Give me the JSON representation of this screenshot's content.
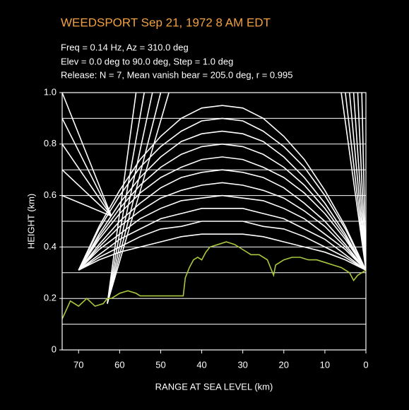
{
  "chart_data": {
    "type": "line",
    "title": "WEEDSPORT   Sep 21, 1972   8 AM EDT",
    "info": [
      "Freq = 0.14 Hz,  Az = 310.0 deg",
      "Elev = 0.0 deg to  90.0 deg, Step = 1.0 deg",
      "Release:  N = 7,  Mean vanish bear = 205.0 deg, r = 0.995"
    ],
    "xlabel": "RANGE AT SEA LEVEL (km)",
    "ylabel": "HEIGHT (km)",
    "xlim": [
      74,
      0
    ],
    "ylim": [
      0,
      1
    ],
    "xticks": [
      70,
      60,
      50,
      40,
      30,
      20,
      10,
      0
    ],
    "yticks": [
      0,
      0.2,
      0.4,
      0.6,
      0.8,
      {
        "value": 1,
        "label": "1.0"
      }
    ],
    "ygrid": [
      0.1,
      0.2,
      0.3,
      0.4,
      0.5,
      0.6,
      0.7,
      0.8,
      0.9
    ],
    "ray_color": "#ffffff",
    "rays": [
      {
        "x": [
          0,
          5,
          10,
          15,
          20,
          25,
          30,
          35,
          40,
          45,
          50,
          55,
          60,
          65,
          70
        ],
        "values": [
          0.31,
          0.35,
          0.38,
          0.4,
          0.42,
          0.44,
          0.45,
          0.45,
          0.45,
          0.44,
          0.42,
          0.4,
          0.38,
          0.35,
          0.31
        ]
      },
      {
        "x": [
          0,
          5,
          10,
          15,
          20,
          25,
          30,
          35,
          40,
          45,
          50,
          55,
          60,
          65,
          70
        ],
        "values": [
          0.31,
          0.36,
          0.4,
          0.44,
          0.47,
          0.48,
          0.5,
          0.5,
          0.5,
          0.48,
          0.47,
          0.44,
          0.4,
          0.36,
          0.31
        ]
      },
      {
        "x": [
          0,
          5,
          10,
          15,
          20,
          25,
          30,
          35,
          40,
          45,
          50,
          55,
          60,
          65,
          70
        ],
        "values": [
          0.31,
          0.37,
          0.43,
          0.47,
          0.51,
          0.53,
          0.55,
          0.55,
          0.55,
          0.53,
          0.51,
          0.47,
          0.43,
          0.37,
          0.31
        ]
      },
      {
        "x": [
          0,
          5,
          10,
          15,
          20,
          25,
          30,
          35,
          40,
          45,
          50,
          55,
          60,
          65,
          70
        ],
        "values": [
          0.31,
          0.39,
          0.45,
          0.51,
          0.55,
          0.58,
          0.59,
          0.6,
          0.59,
          0.58,
          0.55,
          0.51,
          0.45,
          0.39,
          0.31
        ]
      },
      {
        "x": [
          0,
          5,
          10,
          15,
          20,
          25,
          30,
          35,
          40,
          45,
          50,
          55,
          60,
          65,
          70
        ],
        "values": [
          0.31,
          0.4,
          0.48,
          0.54,
          0.59,
          0.62,
          0.64,
          0.65,
          0.64,
          0.62,
          0.59,
          0.54,
          0.48,
          0.4,
          0.31
        ]
      },
      {
        "x": [
          0,
          5,
          10,
          15,
          20,
          25,
          30,
          35,
          40,
          45,
          50,
          55,
          60,
          65,
          70
        ],
        "values": [
          0.31,
          0.41,
          0.5,
          0.57,
          0.63,
          0.67,
          0.69,
          0.7,
          0.69,
          0.67,
          0.63,
          0.57,
          0.5,
          0.41,
          0.31
        ]
      },
      {
        "x": [
          0,
          5,
          10,
          15,
          20,
          25,
          30,
          35,
          40,
          45,
          50,
          55,
          60,
          65,
          70
        ],
        "values": [
          0.31,
          0.43,
          0.53,
          0.61,
          0.67,
          0.71,
          0.74,
          0.75,
          0.74,
          0.71,
          0.67,
          0.61,
          0.53,
          0.43,
          0.31
        ]
      },
      {
        "x": [
          0,
          5,
          10,
          15,
          20,
          25,
          30,
          35,
          40,
          45,
          50,
          55,
          60,
          65,
          70
        ],
        "values": [
          0.31,
          0.44,
          0.55,
          0.64,
          0.71,
          0.76,
          0.79,
          0.8,
          0.79,
          0.76,
          0.71,
          0.64,
          0.55,
          0.44,
          0.31
        ]
      },
      {
        "x": [
          0,
          5,
          10,
          15,
          20,
          25,
          30,
          35,
          40,
          45,
          50,
          55,
          60,
          65,
          70
        ],
        "values": [
          0.31,
          0.45,
          0.57,
          0.67,
          0.75,
          0.81,
          0.84,
          0.85,
          0.84,
          0.81,
          0.75,
          0.67,
          0.57,
          0.45,
          0.31
        ]
      },
      {
        "x": [
          0,
          5,
          10,
          15,
          20,
          25,
          30,
          35,
          40,
          45,
          50,
          55,
          60,
          65,
          70
        ],
        "values": [
          0.31,
          0.47,
          0.6,
          0.71,
          0.79,
          0.85,
          0.89,
          0.9,
          0.89,
          0.85,
          0.79,
          0.71,
          0.6,
          0.47,
          0.31
        ]
      },
      {
        "x": [
          0,
          5,
          10,
          15,
          20,
          25,
          30,
          35,
          40,
          45,
          50,
          55,
          60,
          65,
          70
        ],
        "values": [
          0.31,
          0.48,
          0.62,
          0.74,
          0.83,
          0.9,
          0.94,
          0.95,
          0.94,
          0.9,
          0.83,
          0.74,
          0.62,
          0.48,
          0.31
        ]
      },
      {
        "x": [
          0,
          1
        ],
        "values": [
          0.31,
          1
        ]
      },
      {
        "x": [
          0,
          2
        ],
        "values": [
          0.31,
          1
        ]
      },
      {
        "x": [
          0,
          3
        ],
        "values": [
          0.31,
          1
        ]
      },
      {
        "x": [
          0,
          4
        ],
        "values": [
          0.31,
          1
        ]
      },
      {
        "x": [
          0,
          5
        ],
        "values": [
          0.31,
          1
        ]
      },
      {
        "x": [
          0,
          6
        ],
        "values": [
          0.31,
          1
        ]
      },
      {
        "x": [
          63,
          48
        ],
        "values": [
          0.18,
          1
        ]
      },
      {
        "x": [
          63,
          50
        ],
        "values": [
          0.18,
          1
        ]
      },
      {
        "x": [
          63,
          52
        ],
        "values": [
          0.18,
          1
        ]
      },
      {
        "x": [
          63,
          54
        ],
        "values": [
          0.18,
          1
        ]
      },
      {
        "x": [
          63,
          56
        ],
        "values": [
          0.18,
          1
        ]
      },
      {
        "x": [
          62,
          74
        ],
        "values": [
          0.52,
          0.6
        ]
      },
      {
        "x": [
          62,
          74
        ],
        "values": [
          0.52,
          0.7
        ]
      },
      {
        "x": [
          62,
          74
        ],
        "values": [
          0.52,
          0.8
        ]
      },
      {
        "x": [
          62,
          74
        ],
        "values": [
          0.52,
          0.9
        ]
      },
      {
        "x": [
          62,
          74
        ],
        "values": [
          0.52,
          1
        ]
      }
    ],
    "terrain": {
      "color": "#a9c83c",
      "x": [
        74,
        72,
        70,
        68,
        66,
        64,
        63,
        62,
        60,
        58,
        56,
        55,
        50,
        45,
        44.5,
        44,
        43,
        42,
        41,
        40,
        39,
        38,
        36,
        34,
        32,
        30,
        28,
        26,
        24,
        23,
        22.5,
        22,
        20,
        18,
        16,
        14,
        12,
        10,
        8,
        6,
        4,
        3,
        2,
        1,
        0
      ],
      "values": [
        0.12,
        0.19,
        0.17,
        0.2,
        0.17,
        0.18,
        0.2,
        0.2,
        0.22,
        0.23,
        0.22,
        0.21,
        0.21,
        0.21,
        0.21,
        0.28,
        0.32,
        0.35,
        0.36,
        0.35,
        0.38,
        0.4,
        0.41,
        0.42,
        0.41,
        0.39,
        0.37,
        0.37,
        0.35,
        0.31,
        0.29,
        0.33,
        0.35,
        0.36,
        0.36,
        0.35,
        0.35,
        0.34,
        0.33,
        0.32,
        0.3,
        0.27,
        0.29,
        0.3,
        0.31
      ]
    }
  }
}
